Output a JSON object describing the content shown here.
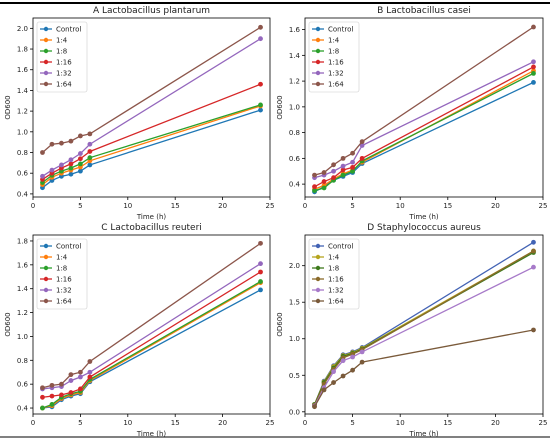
{
  "colors": {
    "Control": "#1f77b4",
    "1:4": "#ff7f0e",
    "1:8": "#2ca02c",
    "1:16": "#d62728",
    "1:32": "#9467bd",
    "1:64": "#8c564b",
    "D_series": [
      "#4363b4",
      "#b6a51f",
      "#3e7a1c",
      "#8a6a2a",
      "#a77ac9",
      "#7a5a3a"
    ]
  },
  "chart_data": [
    {
      "type": "line",
      "title": "A Lactobacillus plantarum",
      "xlabel": "Time (h)",
      "ylabel": "OD600",
      "xlim": [
        0,
        25
      ],
      "ylim": [
        0.37,
        2.1
      ],
      "xticks": [
        0,
        5,
        10,
        15,
        20,
        25
      ],
      "yticks": [
        0.4,
        0.6,
        0.8,
        1.0,
        1.2,
        1.4,
        1.6,
        1.8,
        2.0
      ],
      "ytick_format": 1,
      "grid": false,
      "legend": "top-left",
      "x": [
        1,
        2,
        3,
        4,
        5,
        6,
        24
      ],
      "series": [
        {
          "name": "Control",
          "values": [
            0.46,
            0.53,
            0.57,
            0.59,
            0.62,
            0.68,
            1.21
          ]
        },
        {
          "name": "1:4",
          "values": [
            0.49,
            0.56,
            0.6,
            0.63,
            0.66,
            0.72,
            1.25
          ]
        },
        {
          "name": "1:8",
          "values": [
            0.51,
            0.58,
            0.62,
            0.65,
            0.69,
            0.75,
            1.26
          ]
        },
        {
          "name": "1:16",
          "values": [
            0.54,
            0.6,
            0.65,
            0.69,
            0.74,
            0.81,
            1.46
          ]
        },
        {
          "name": "1:32",
          "values": [
            0.57,
            0.63,
            0.68,
            0.73,
            0.79,
            0.88,
            1.9
          ]
        },
        {
          "name": "1:64",
          "values": [
            0.8,
            0.88,
            0.89,
            0.91,
            0.96,
            0.98,
            2.01
          ]
        }
      ]
    },
    {
      "type": "line",
      "title": "B Lactobacillus casei",
      "xlabel": "Time (h)",
      "ylabel": "OD600",
      "xlim": [
        0,
        25
      ],
      "ylim": [
        0.3,
        1.69
      ],
      "xticks": [
        0,
        5,
        10,
        15,
        20,
        25
      ],
      "yticks": [
        0.4,
        0.6,
        0.8,
        1.0,
        1.2,
        1.4,
        1.6
      ],
      "ytick_format": 1,
      "grid": false,
      "legend": "top-left",
      "x": [
        1,
        2,
        3,
        4,
        5,
        6,
        24
      ],
      "series": [
        {
          "name": "Control",
          "values": [
            0.34,
            0.38,
            0.43,
            0.46,
            0.49,
            0.56,
            1.19
          ]
        },
        {
          "name": "1:4",
          "values": [
            0.36,
            0.39,
            0.44,
            0.48,
            0.51,
            0.57,
            1.28
          ]
        },
        {
          "name": "1:8",
          "values": [
            0.35,
            0.37,
            0.43,
            0.47,
            0.5,
            0.58,
            1.26
          ]
        },
        {
          "name": "1:16",
          "values": [
            0.38,
            0.42,
            0.45,
            0.51,
            0.53,
            0.6,
            1.31
          ]
        },
        {
          "name": "1:32",
          "values": [
            0.45,
            0.47,
            0.5,
            0.54,
            0.57,
            0.7,
            1.35
          ]
        },
        {
          "name": "1:64",
          "values": [
            0.47,
            0.49,
            0.55,
            0.6,
            0.64,
            0.73,
            1.62
          ]
        }
      ]
    },
    {
      "type": "line",
      "title": "C Lactobacillus reuteri",
      "xlabel": "Time (h)",
      "ylabel": "OD600",
      "xlim": [
        0,
        25
      ],
      "ylim": [
        0.35,
        1.85
      ],
      "xticks": [
        0,
        5,
        10,
        15,
        20,
        25
      ],
      "yticks": [
        0.4,
        0.6,
        0.8,
        1.0,
        1.2,
        1.4,
        1.6,
        1.8
      ],
      "ytick_format": 1,
      "grid": false,
      "legend": "top-left",
      "x": [
        1,
        2,
        3,
        4,
        5,
        6,
        24
      ],
      "series": [
        {
          "name": "Control",
          "values": [
            0.4,
            0.41,
            0.47,
            0.5,
            0.52,
            0.62,
            1.39
          ]
        },
        {
          "name": "1:4",
          "values": [
            0.4,
            0.42,
            0.48,
            0.51,
            0.53,
            0.63,
            1.45
          ]
        },
        {
          "name": "1:8",
          "values": [
            0.4,
            0.43,
            0.49,
            0.52,
            0.54,
            0.64,
            1.46
          ]
        },
        {
          "name": "1:16",
          "values": [
            0.49,
            0.5,
            0.51,
            0.53,
            0.56,
            0.66,
            1.54
          ]
        },
        {
          "name": "1:32",
          "values": [
            0.56,
            0.57,
            0.58,
            0.63,
            0.66,
            0.7,
            1.61
          ]
        },
        {
          "name": "1:64",
          "values": [
            0.57,
            0.59,
            0.6,
            0.68,
            0.7,
            0.79,
            1.78
          ]
        }
      ]
    },
    {
      "type": "line",
      "title": "D Staphylococcus aureus",
      "xlabel": "Time (h)",
      "ylabel": "OD600",
      "xlim": [
        0,
        25
      ],
      "ylim": [
        -0.03,
        2.42
      ],
      "xticks": [
        0,
        5,
        10,
        15,
        20,
        25
      ],
      "yticks": [
        0.0,
        0.5,
        1.0,
        1.5,
        2.0
      ],
      "ytick_format": 1,
      "grid": false,
      "legend": "top-left",
      "x": [
        1,
        2,
        3,
        4,
        5,
        6,
        24
      ],
      "series": [
        {
          "name": "Control",
          "values": [
            0.1,
            0.42,
            0.63,
            0.78,
            0.82,
            0.88,
            2.32
          ]
        },
        {
          "name": "1:4",
          "values": [
            0.1,
            0.41,
            0.62,
            0.77,
            0.81,
            0.87,
            2.2
          ]
        },
        {
          "name": "1:8",
          "values": [
            0.1,
            0.4,
            0.6,
            0.76,
            0.8,
            0.86,
            2.18
          ]
        },
        {
          "name": "1:16",
          "values": [
            0.09,
            0.38,
            0.58,
            0.74,
            0.79,
            0.85,
            2.2
          ]
        },
        {
          "name": "1:32",
          "values": [
            0.08,
            0.33,
            0.55,
            0.7,
            0.75,
            0.82,
            1.98
          ]
        },
        {
          "name": "1:64",
          "values": [
            0.07,
            0.3,
            0.4,
            0.49,
            0.57,
            0.68,
            1.12
          ]
        }
      ]
    }
  ]
}
